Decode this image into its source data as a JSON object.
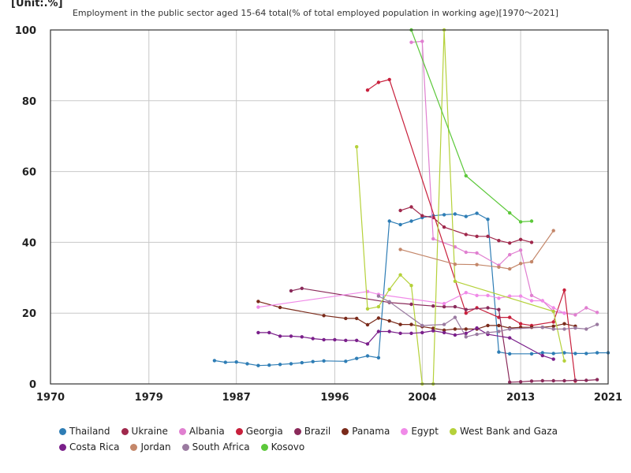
{
  "unit_label": "[Unit:.%]",
  "chart_data": {
    "type": "line",
    "title": "Employment in the public sector aged 15-64 total(% of total employed population in working age)[1970～2021]",
    "xlabel": "",
    "ylabel": "",
    "xlim": [
      1970,
      2021
    ],
    "ylim": [
      0,
      100
    ],
    "x_ticks": [
      "1970",
      "1979",
      "1987",
      "1996",
      "2004",
      "2013",
      "2021"
    ],
    "y_ticks": [
      "0",
      "20",
      "40",
      "60",
      "80",
      "100"
    ],
    "grid": true,
    "legend_position": "bottom",
    "series": [
      {
        "name": "Thailand",
        "color": "#2e7db5",
        "points": [
          [
            1985,
            6.6
          ],
          [
            1986,
            6.1
          ],
          [
            1987,
            6.2
          ],
          [
            1988,
            5.7
          ],
          [
            1989,
            5.2
          ],
          [
            1990,
            5.3
          ],
          [
            1991,
            5.5
          ],
          [
            1992,
            5.7
          ],
          [
            1993,
            6.0
          ],
          [
            1994,
            6.3
          ],
          [
            1995,
            6.5
          ],
          [
            1997,
            6.4
          ],
          [
            1998,
            7.2
          ],
          [
            1999,
            7.9
          ],
          [
            2000,
            7.4
          ],
          [
            2001,
            46.0
          ],
          [
            2002,
            45.0
          ],
          [
            2003,
            46.0
          ],
          [
            2004,
            47.0
          ],
          [
            2005,
            47.5
          ],
          [
            2006,
            47.8
          ],
          [
            2007,
            48.0
          ],
          [
            2008,
            47.3
          ],
          [
            2009,
            48.2
          ],
          [
            2010,
            46.5
          ],
          [
            2011,
            9.0
          ],
          [
            2012,
            8.5
          ],
          [
            2014,
            8.5
          ],
          [
            2015,
            8.8
          ],
          [
            2016,
            8.6
          ],
          [
            2017,
            8.8
          ],
          [
            2018,
            8.6
          ],
          [
            2019,
            8.6
          ],
          [
            2020,
            8.8
          ],
          [
            2021,
            8.8
          ]
        ]
      },
      {
        "name": "Ukraine",
        "color": "#a0284c",
        "points": [
          [
            2002,
            49.0
          ],
          [
            2003,
            50.0
          ],
          [
            2004,
            47.5
          ],
          [
            2005,
            47.0
          ],
          [
            2006,
            44.3
          ],
          [
            2008,
            42.2
          ],
          [
            2009,
            41.7
          ],
          [
            2010,
            41.7
          ],
          [
            2011,
            40.5
          ],
          [
            2012,
            39.8
          ],
          [
            2013,
            40.8
          ],
          [
            2014,
            40.0
          ]
        ]
      },
      {
        "name": "Albania",
        "color": "#e07fd0",
        "points": [
          [
            2003,
            96.5
          ],
          [
            2004,
            96.8
          ],
          [
            2005,
            41.0
          ],
          [
            2007,
            38.7
          ],
          [
            2008,
            37.2
          ],
          [
            2009,
            37.0
          ],
          [
            2011,
            33.5
          ],
          [
            2012,
            36.5
          ],
          [
            2013,
            37.8
          ],
          [
            2014,
            25.0
          ],
          [
            2015,
            23.5
          ],
          [
            2016,
            20.5
          ],
          [
            2017,
            20.0
          ],
          [
            2018,
            19.5
          ],
          [
            2019,
            21.5
          ],
          [
            2020,
            20.2
          ]
        ]
      },
      {
        "name": "Georgia",
        "color": "#c8203c",
        "points": [
          [
            1999,
            83.0
          ],
          [
            2000,
            85.2
          ],
          [
            2001,
            86.0
          ],
          [
            2008,
            20.0
          ],
          [
            2009,
            21.5
          ],
          [
            2011,
            18.8
          ],
          [
            2012,
            18.8
          ],
          [
            2013,
            17.0
          ],
          [
            2014,
            16.5
          ],
          [
            2016,
            17.5
          ],
          [
            2017,
            26.5
          ],
          [
            2018,
            0.8
          ]
        ]
      },
      {
        "name": "Brazil",
        "color": "#8a2a5a",
        "points": [
          [
            1992,
            26.3
          ],
          [
            1993,
            27.0
          ],
          [
            2001,
            23.0
          ],
          [
            2003,
            22.5
          ],
          [
            2005,
            22.0
          ],
          [
            2006,
            21.8
          ],
          [
            2007,
            21.8
          ],
          [
            2008,
            21.0
          ],
          [
            2010,
            21.5
          ],
          [
            2011,
            21.0
          ],
          [
            2012,
            0.5
          ],
          [
            2013,
            0.6
          ],
          [
            2014,
            0.8
          ],
          [
            2015,
            0.9
          ],
          [
            2016,
            0.9
          ],
          [
            2017,
            0.9
          ],
          [
            2018,
            1.0
          ],
          [
            2019,
            1.0
          ],
          [
            2020,
            1.2
          ]
        ]
      },
      {
        "name": "Panama",
        "color": "#7a2a1a",
        "points": [
          [
            1989,
            23.3
          ],
          [
            1991,
            21.6
          ],
          [
            1995,
            19.3
          ],
          [
            1997,
            18.5
          ],
          [
            1998,
            18.5
          ],
          [
            1999,
            16.7
          ],
          [
            2000,
            18.6
          ],
          [
            2001,
            17.8
          ],
          [
            2002,
            16.8
          ],
          [
            2003,
            16.8
          ],
          [
            2004,
            16.2
          ],
          [
            2005,
            15.7
          ],
          [
            2006,
            15.2
          ],
          [
            2007,
            15.5
          ],
          [
            2008,
            15.5
          ],
          [
            2009,
            15.5
          ],
          [
            2010,
            16.5
          ],
          [
            2011,
            16.5
          ],
          [
            2012,
            15.8
          ],
          [
            2013,
            16.0
          ],
          [
            2014,
            16.0
          ],
          [
            2015,
            16.0
          ],
          [
            2016,
            16.3
          ],
          [
            2017,
            17.0
          ],
          [
            2018,
            16.3
          ]
        ]
      },
      {
        "name": "Egypt",
        "color": "#f08ae8",
        "points": [
          [
            1989,
            21.7
          ],
          [
            1999,
            26.1
          ],
          [
            2000,
            25.3
          ],
          [
            2006,
            22.7
          ],
          [
            2008,
            25.8
          ],
          [
            2009,
            25.0
          ],
          [
            2010,
            25.0
          ],
          [
            2011,
            24.2
          ],
          [
            2012,
            24.8
          ],
          [
            2013,
            24.8
          ],
          [
            2014,
            23.5
          ],
          [
            2015,
            23.5
          ],
          [
            2016,
            21.5
          ],
          [
            2017,
            20.0
          ]
        ]
      },
      {
        "name": "West Bank and Gaza",
        "color": "#b5d13a",
        "points": [
          [
            1998,
            67.0
          ],
          [
            1999,
            21.2
          ],
          [
            2000,
            21.8
          ],
          [
            2001,
            26.7
          ],
          [
            2002,
            30.8
          ],
          [
            2003,
            27.8
          ],
          [
            2004,
            0.0
          ],
          [
            2005,
            0.0
          ],
          [
            2006,
            100.0
          ],
          [
            2007,
            29.0
          ],
          [
            2016,
            20.5
          ],
          [
            2017,
            6.5
          ]
        ]
      },
      {
        "name": "Costa Rica",
        "color": "#7a1f8a",
        "points": [
          [
            1989,
            14.5
          ],
          [
            1990,
            14.5
          ],
          [
            1991,
            13.5
          ],
          [
            1992,
            13.5
          ],
          [
            1993,
            13.3
          ],
          [
            1994,
            12.8
          ],
          [
            1995,
            12.5
          ],
          [
            1996,
            12.5
          ],
          [
            1997,
            12.3
          ],
          [
            1998,
            12.3
          ],
          [
            1999,
            11.3
          ],
          [
            2000,
            14.8
          ],
          [
            2001,
            14.8
          ],
          [
            2002,
            14.3
          ],
          [
            2003,
            14.3
          ],
          [
            2004,
            14.5
          ],
          [
            2005,
            15.0
          ],
          [
            2006,
            14.5
          ],
          [
            2007,
            13.8
          ],
          [
            2008,
            14.3
          ],
          [
            2009,
            15.8
          ],
          [
            2010,
            14.0
          ],
          [
            2012,
            13.0
          ],
          [
            2015,
            8.0
          ],
          [
            2016,
            7.0
          ]
        ]
      },
      {
        "name": "Jordan",
        "color": "#c4876a",
        "points": [
          [
            2002,
            38.0
          ],
          [
            2007,
            33.8
          ],
          [
            2009,
            33.7
          ],
          [
            2011,
            33.0
          ],
          [
            2012,
            32.5
          ],
          [
            2013,
            34.0
          ],
          [
            2014,
            34.5
          ],
          [
            2016,
            43.3
          ]
        ]
      },
      {
        "name": "South Africa",
        "color": "#9a7aa0",
        "points": [
          [
            2000,
            24.8
          ],
          [
            2001,
            23.2
          ],
          [
            2004,
            16.5
          ],
          [
            2006,
            16.8
          ],
          [
            2007,
            18.8
          ],
          [
            2008,
            13.3
          ],
          [
            2009,
            14.0
          ],
          [
            2010,
            14.5
          ],
          [
            2011,
            14.8
          ],
          [
            2012,
            15.5
          ],
          [
            2015,
            16.0
          ],
          [
            2016,
            15.5
          ],
          [
            2017,
            15.5
          ],
          [
            2018,
            15.8
          ],
          [
            2019,
            15.5
          ],
          [
            2020,
            16.8
          ]
        ]
      },
      {
        "name": "Kosovo",
        "color": "#5cc83a",
        "points": [
          [
            2003,
            100.0
          ],
          [
            2008,
            58.8
          ],
          [
            2012,
            48.3
          ],
          [
            2013,
            45.8
          ],
          [
            2014,
            46.0
          ]
        ]
      }
    ]
  }
}
